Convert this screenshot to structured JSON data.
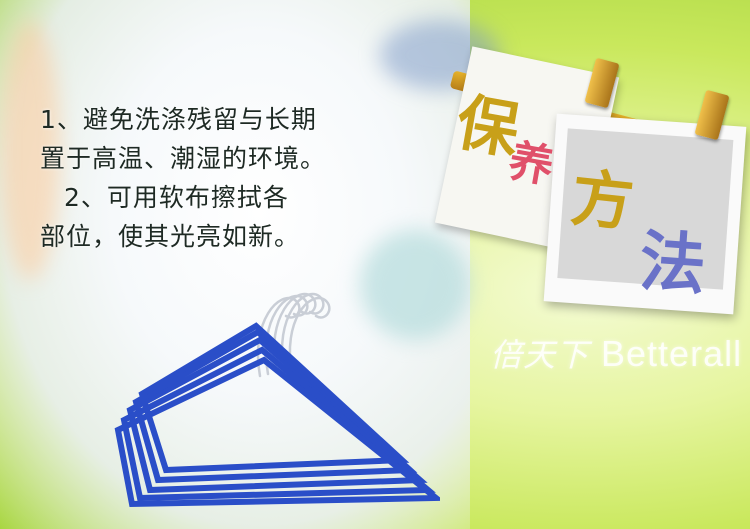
{
  "care_text": {
    "line1": "1、避免洗涤残留与长期",
    "line2": "置于高温、潮湿的环境。",
    "line3": "2、可用软布擦拭各",
    "line4": "部位，使其光亮如新。"
  },
  "title_chars": {
    "c1": "保",
    "c2": "养",
    "c3": "方",
    "c4": "法"
  },
  "watermark": {
    "cn": "倍天下",
    "en": "Betterall"
  },
  "colors": {
    "hanger_blue": "#2a4ec8",
    "title_gold": "#c8a019",
    "title_red": "#e0506a",
    "title_violet": "#6a72c8"
  }
}
